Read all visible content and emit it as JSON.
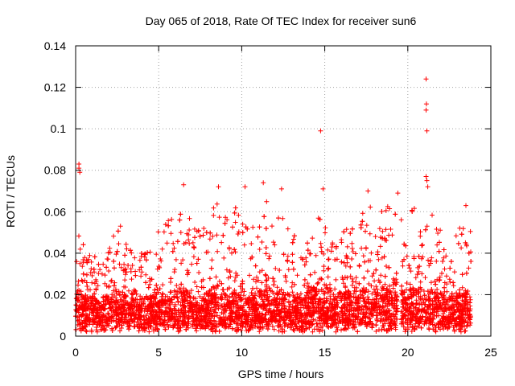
{
  "chart_data": {
    "type": "scatter",
    "title": "Day 065 of 2018, Rate Of TEC Index for receiver sun6",
    "xlabel": "GPS time / hours",
    "ylabel": "ROTI / TECUs",
    "xlim": [
      0,
      25
    ],
    "ylim": [
      0,
      0.14
    ],
    "xticks": [
      0,
      5,
      10,
      15,
      20,
      25
    ],
    "yticks": [
      0,
      0.02,
      0.04,
      0.06,
      0.08,
      0.1,
      0.12,
      0.14
    ],
    "xtick_labels": [
      "0",
      "5",
      "10",
      "15",
      "20",
      "25"
    ],
    "ytick_labels": [
      "0",
      "0.02",
      "0.04",
      "0.06",
      "0.08",
      "0.1",
      "0.12",
      "0.14"
    ],
    "grid": true,
    "marker": "+",
    "color": "#ff0000",
    "data_span_hours": [
      0,
      23.8
    ],
    "data_gap_hours": [
      19.4,
      19.6
    ],
    "density_points": 5200,
    "envelope": {
      "hours": [
        0,
        0.5,
        1.5,
        2.5,
        3.5,
        4.5,
        5.5,
        6.5,
        7.5,
        8.5,
        9.5,
        10.5,
        11.5,
        12.5,
        13.5,
        14.5,
        15.5,
        16.5,
        17.5,
        18.5,
        19.5,
        20.5,
        21.5,
        22.5,
        23.5
      ],
      "typical": [
        0.022,
        0.018,
        0.016,
        0.02,
        0.017,
        0.018,
        0.019,
        0.021,
        0.017,
        0.022,
        0.02,
        0.017,
        0.022,
        0.02,
        0.018,
        0.022,
        0.02,
        0.021,
        0.022,
        0.023,
        0.02,
        0.022,
        0.02,
        0.017,
        0.02
      ],
      "peak": [
        0.058,
        0.045,
        0.035,
        0.052,
        0.04,
        0.045,
        0.057,
        0.062,
        0.05,
        0.065,
        0.063,
        0.055,
        0.065,
        0.062,
        0.045,
        0.06,
        0.05,
        0.055,
        0.063,
        0.065,
        0.058,
        0.063,
        0.06,
        0.045,
        0.062
      ]
    },
    "notable_points": [
      {
        "x": 0.2,
        "y": 0.083
      },
      {
        "x": 0.2,
        "y": 0.081
      },
      {
        "x": 0.25,
        "y": 0.079
      },
      {
        "x": 2.7,
        "y": 0.053
      },
      {
        "x": 6.5,
        "y": 0.073
      },
      {
        "x": 8.6,
        "y": 0.072
      },
      {
        "x": 10.2,
        "y": 0.072
      },
      {
        "x": 11.3,
        "y": 0.074
      },
      {
        "x": 12.4,
        "y": 0.071
      },
      {
        "x": 14.75,
        "y": 0.099
      },
      {
        "x": 14.9,
        "y": 0.071
      },
      {
        "x": 17.6,
        "y": 0.07
      },
      {
        "x": 19.4,
        "y": 0.069
      },
      {
        "x": 21.1,
        "y": 0.124
      },
      {
        "x": 21.12,
        "y": 0.112
      },
      {
        "x": 21.1,
        "y": 0.109
      },
      {
        "x": 21.15,
        "y": 0.099
      },
      {
        "x": 21.1,
        "y": 0.077
      },
      {
        "x": 21.15,
        "y": 0.075
      },
      {
        "x": 21.2,
        "y": 0.072
      },
      {
        "x": 23.5,
        "y": 0.063
      }
    ]
  }
}
